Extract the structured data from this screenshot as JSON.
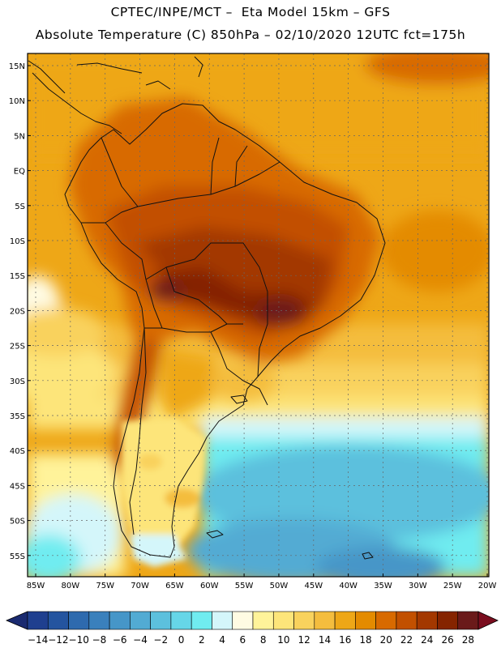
{
  "header": {
    "line1": "CPTEC/INPE/MCT –  Eta Model 15km – GFS",
    "line2": "Absolute Temperature (C) 850hPa – 02/10/2020 12UTC fct=175h"
  },
  "map": {
    "lat_labels": [
      "15N",
      "10N",
      "5N",
      "EQ",
      "5S",
      "10S",
      "15S",
      "20S",
      "25S",
      "30S",
      "35S",
      "40S",
      "45S",
      "50S",
      "55S"
    ],
    "lon_labels": [
      "85W",
      "80W",
      "75W",
      "70W",
      "65W",
      "60W",
      "55W",
      "50W",
      "45W",
      "40W",
      "35W",
      "30W",
      "25W",
      "20W"
    ]
  },
  "colorbar": {
    "colors": [
      "#1f3f8f",
      "#24549f",
      "#2e6aae",
      "#3a80bc",
      "#4696c8",
      "#52abd3",
      "#5cc0dd",
      "#66d6e8",
      "#70ecf0",
      "#d4f6fa",
      "#fffbe3",
      "#fff39a",
      "#fde57a",
      "#f9d25d",
      "#f4bd3e",
      "#eea717",
      "#e48b00",
      "#d86a00",
      "#c25000",
      "#a33800",
      "#852400",
      "#6a1a1a"
    ],
    "labels": [
      "-14",
      "-12",
      "-10",
      "-8",
      "-6",
      "-4",
      "-2",
      "0",
      "2",
      "4",
      "6",
      "8",
      "10",
      "12",
      "14",
      "16",
      "18",
      "20",
      "22",
      "24",
      "26",
      "28"
    ],
    "low_arrow_color": "#1a2a70",
    "high_arrow_color": "#7a0d1e"
  }
}
